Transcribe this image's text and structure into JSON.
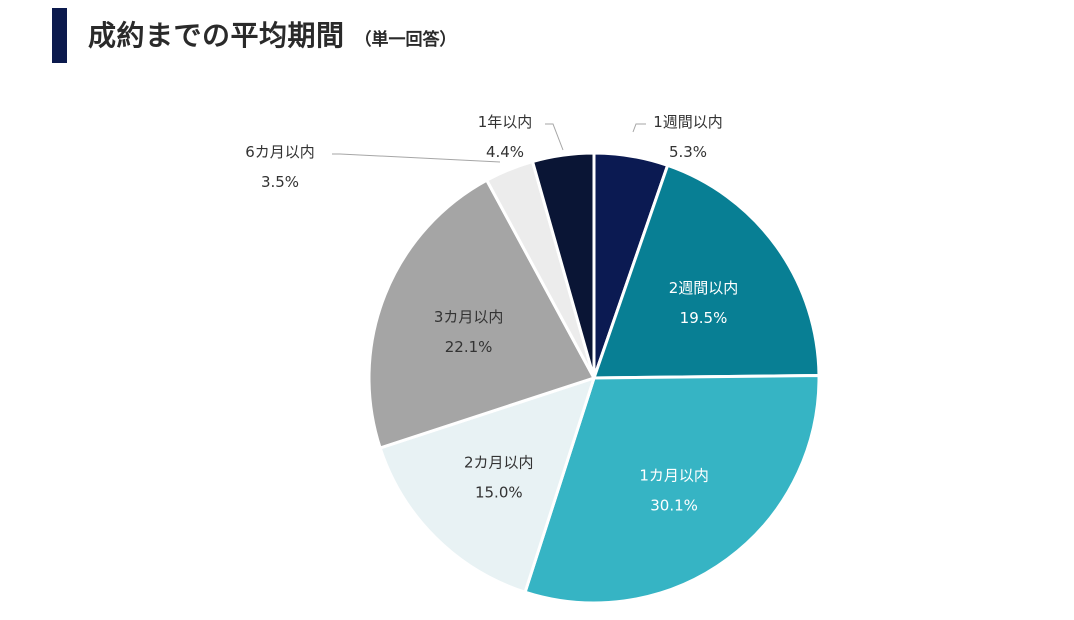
{
  "header": {
    "title": "成約までの平均期間",
    "subtitle": "（単一回答）"
  },
  "chart_data": {
    "type": "pie",
    "title": "成約までの平均期間",
    "unit": "%",
    "start": "12 o'clock",
    "direction": "clockwise",
    "slices": [
      {
        "label": "1週間以内",
        "value": 5.3,
        "value_label": "5.3%",
        "color": "#0b1a52",
        "text_color": "#333333",
        "label_position": "outside"
      },
      {
        "label": "2週間以内",
        "value": 19.5,
        "value_label": "19.5%",
        "color": "#087f94",
        "text_color": "#ffffff",
        "label_position": "inside"
      },
      {
        "label": "1カ月以内",
        "value": 30.1,
        "value_label": "30.1%",
        "color": "#36b4c4",
        "text_color": "#ffffff",
        "label_position": "inside"
      },
      {
        "label": "2カ月以内",
        "value": 15.0,
        "value_label": "15.0%",
        "color": "#e8f2f4",
        "text_color": "#333333",
        "label_position": "inside"
      },
      {
        "label": "3カ月以内",
        "value": 22.1,
        "value_label": "22.1%",
        "color": "#a5a5a5",
        "text_color": "#333333",
        "label_position": "inside"
      },
      {
        "label": "6カ月以内",
        "value": 3.5,
        "value_label": "3.5%",
        "color": "#ececec",
        "text_color": "#333333",
        "label_position": "outside"
      },
      {
        "label": "1年以内",
        "value": 4.4,
        "value_label": "4.4%",
        "color": "#0a1535",
        "text_color": "#333333",
        "label_position": "outside"
      }
    ]
  }
}
